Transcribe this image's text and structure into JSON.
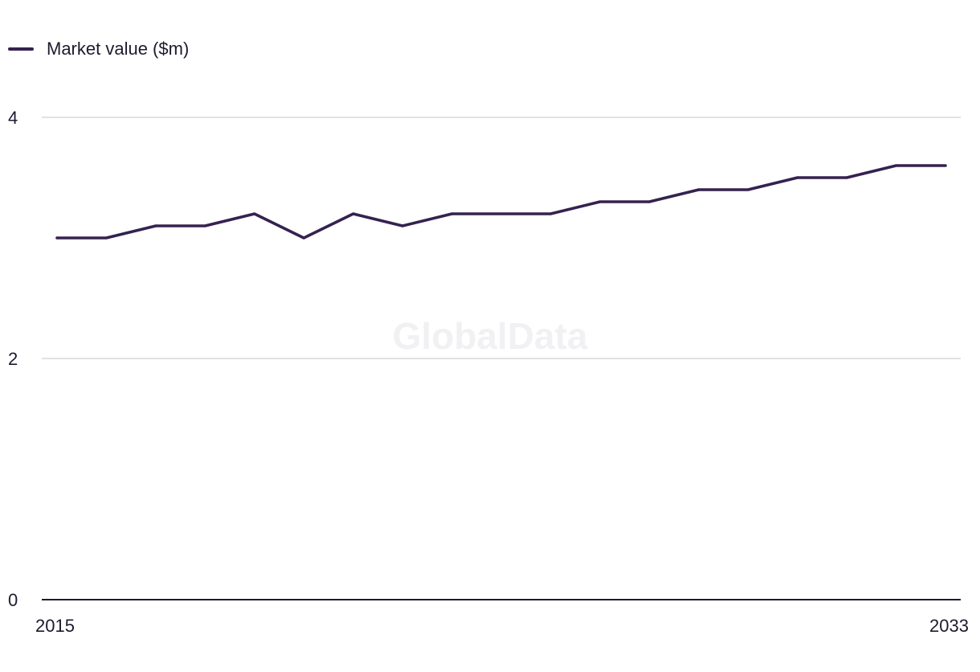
{
  "legend": {
    "label": "Market value ($m)"
  },
  "watermark": "GlobalData",
  "colors": {
    "series": "#35224f",
    "grid": "#d9d9d9",
    "axis": "#1f1a2e"
  },
  "chart_data": {
    "type": "line",
    "x": [
      2015,
      2016,
      2017,
      2018,
      2019,
      2020,
      2021,
      2022,
      2023,
      2024,
      2025,
      2026,
      2027,
      2028,
      2029,
      2030,
      2031,
      2032,
      2033
    ],
    "x_tick_labels": [
      "2015",
      "2033"
    ],
    "y_ticks": [
      0,
      2,
      4
    ],
    "ylim": [
      0,
      4
    ],
    "grid": true,
    "legend_position": "top-left",
    "series": [
      {
        "name": "Market value ($m)",
        "values": [
          3.0,
          3.0,
          3.1,
          3.1,
          3.2,
          3.0,
          3.2,
          3.1,
          3.2,
          3.2,
          3.2,
          3.3,
          3.3,
          3.4,
          3.4,
          3.5,
          3.5,
          3.6,
          3.6
        ]
      }
    ],
    "title": "",
    "xlabel": "",
    "ylabel": ""
  }
}
